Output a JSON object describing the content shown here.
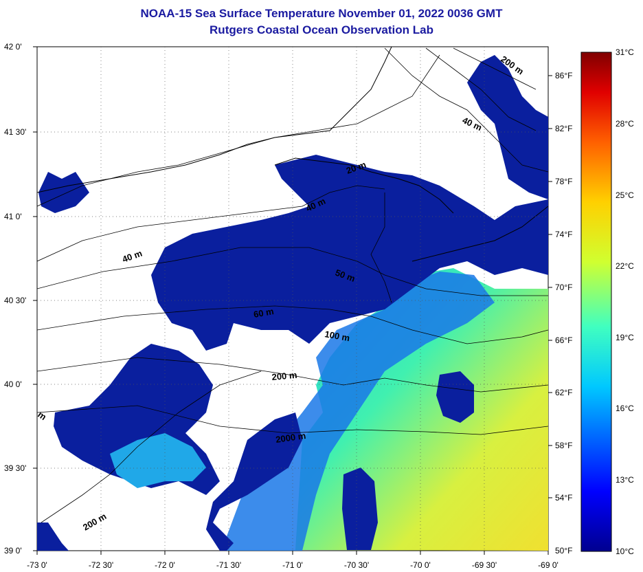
{
  "title": "NOAA-15 Sea Surface Temperature November 01, 2022 0036 GMT",
  "subtitle": "Rutgers Coastal Ocean Observation Lab",
  "lat_labels": [
    "42 0'",
    "41 30'",
    "41 0'",
    "40 30'",
    "40 0'",
    "39 30'",
    "39 0'"
  ],
  "lon_labels": [
    "-73 0'",
    "-72 30'",
    "-72 0'",
    "-71 30'",
    "-71 0'",
    "-70 30'",
    "-70 0'",
    "-69 30'",
    "-69 0'"
  ],
  "fahrenheit_labels": [
    "86°F",
    "82°F",
    "78°F",
    "74°F",
    "70°F",
    "66°F",
    "62°F",
    "58°F",
    "54°F",
    "50°F"
  ],
  "celsius_labels": [
    "31°C",
    "28°C",
    "25°C",
    "22°C",
    "19°C",
    "16°C",
    "13°C",
    "10°C"
  ],
  "contour_labels": [
    "200 m",
    "40 m",
    "20 m",
    "40 m",
    "40 m",
    "50 m",
    "60 m",
    "100 m",
    "200 m",
    "2000 m",
    "200 m",
    "m"
  ],
  "colors": {
    "title": "#1a1aa0",
    "water_deep": "#0a1f9e",
    "water_warm": "#e8ee30"
  }
}
